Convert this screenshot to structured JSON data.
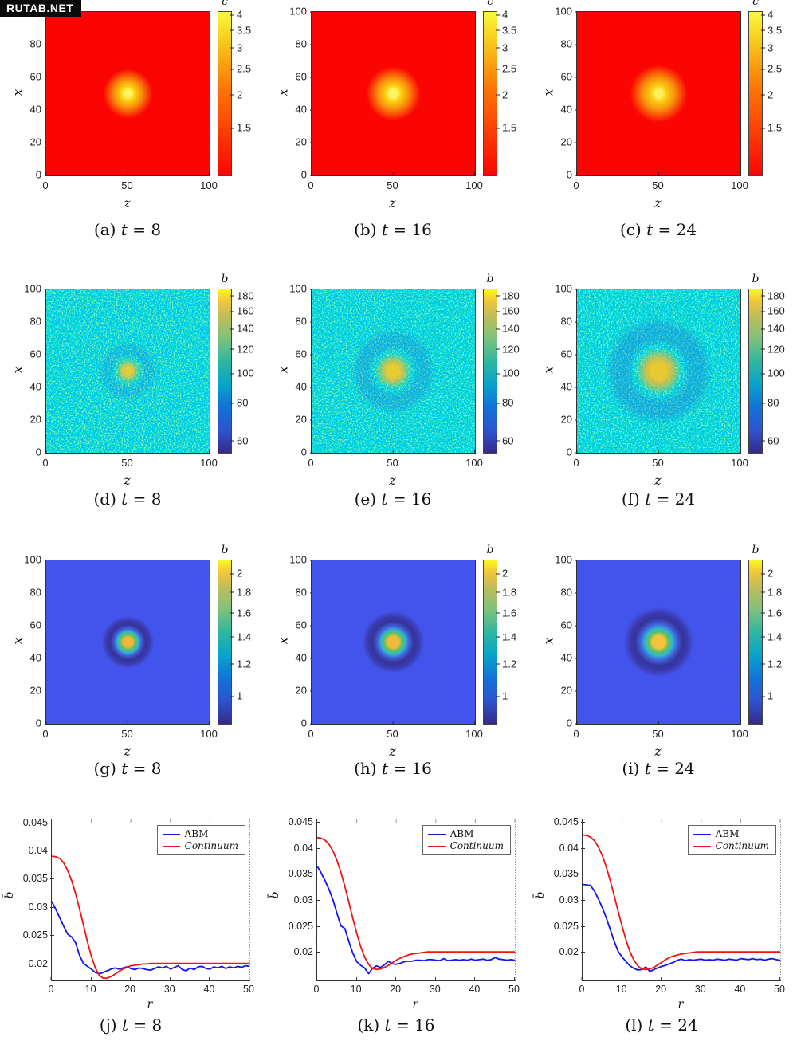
{
  "watermark": "RUTAB.NET",
  "palette": {
    "line_blue": "#1414f0",
    "line_red": "#f01414",
    "row1_background": "#fb0502",
    "row2_base": "#2bacc0",
    "row3_background": "#4354ec",
    "row3_ring": "#35339b",
    "autumn_colormap": [
      "#fa0500",
      "#fb7b07",
      "#f7d21e",
      "#f9f93e"
    ],
    "parula_colormap": [
      "#352a87",
      "#2e54d0",
      "#1173d8",
      "#08a4ca",
      "#2fb79f",
      "#7dc27c",
      "#c3bd59",
      "#f3c63b",
      "#f9f921"
    ]
  },
  "chart_data": [
    {
      "type": "heatmap",
      "label": "continuum nutrient field",
      "colormap": "autumn",
      "xlabel": "z",
      "ylabel": "x",
      "xlim": [
        0,
        100
      ],
      "ylim": [
        0,
        100
      ],
      "x_ticks": [
        0,
        50,
        100
      ],
      "y_ticks": [
        100,
        80,
        60,
        40,
        20,
        0
      ],
      "cbar": {
        "title": "c",
        "scale": "log",
        "min": 1.0,
        "max": 4.12,
        "tick_labels": [
          "4",
          "3.5",
          "3",
          "2.5",
          "2",
          "1.5"
        ],
        "tick_values": [
          4,
          3.5,
          3,
          2.5,
          2,
          1.5
        ]
      },
      "field": {
        "shape": "gaussian-spot",
        "background_value": 1.0,
        "peak_value": 4.0,
        "peak_center": [
          50,
          50
        ]
      },
      "panels": [
        {
          "tag": "(a)",
          "var": "t",
          "rest": "= 8",
          "time": 8
        },
        {
          "tag": "(b)",
          "var": "t",
          "rest": "= 16",
          "time": 16
        },
        {
          "tag": "(c)",
          "var": "t",
          "rest": "= 24",
          "time": 24
        }
      ]
    },
    {
      "type": "heatmap",
      "label": "agent-based bacteria density (noisy)",
      "colormap": "parula",
      "xlabel": "z",
      "ylabel": "x",
      "xlim": [
        0,
        100
      ],
      "ylim": [
        0,
        100
      ],
      "x_ticks": [
        0,
        50,
        100
      ],
      "y_ticks": [
        100,
        80,
        60,
        40,
        20,
        0
      ],
      "cbar": {
        "title": "b",
        "scale": "log",
        "min": 55,
        "max": 190,
        "tick_labels": [
          "180",
          "160",
          "140",
          "120",
          "100",
          "80",
          "60"
        ],
        "tick_values": [
          180,
          160,
          140,
          120,
          100,
          80,
          60
        ]
      },
      "field": {
        "shape": "noisy-spot",
        "background_value": 100,
        "noise_range": [
          60,
          180
        ],
        "peak_value": 180,
        "peak_center": [
          50,
          50
        ]
      },
      "panels": [
        {
          "tag": "(d)",
          "var": "t",
          "rest": "= 8",
          "time": 8
        },
        {
          "tag": "(e)",
          "var": "t",
          "rest": "= 16",
          "time": 16
        },
        {
          "tag": "(f)",
          "var": "t",
          "rest": "= 24",
          "time": 24
        }
      ]
    },
    {
      "type": "heatmap",
      "label": "continuum bacteria density (ring)",
      "colormap": "parula",
      "xlabel": "z",
      "ylabel": "x",
      "xlim": [
        0,
        100
      ],
      "ylim": [
        0,
        100
      ],
      "x_ticks": [
        0,
        50,
        100
      ],
      "y_ticks": [
        100,
        80,
        60,
        40,
        20,
        0
      ],
      "cbar": {
        "title": "b",
        "scale": "log",
        "min": 0.86,
        "max": 2.16,
        "tick_labels": [
          "2",
          "1.8",
          "1.6",
          "1.4",
          "1.2",
          "1"
        ],
        "tick_values": [
          2,
          1.8,
          1.6,
          1.4,
          1.2,
          1
        ]
      },
      "field": {
        "shape": "ring-spot",
        "background_value": 1.05,
        "ring_min": 0.9,
        "peak_value": 2.1,
        "peak_center": [
          50,
          50
        ]
      },
      "panels": [
        {
          "tag": "(g)",
          "var": "t",
          "rest": "= 8",
          "time": 8
        },
        {
          "tag": "(h)",
          "var": "t",
          "rest": "= 16",
          "time": 16
        },
        {
          "tag": "(i)",
          "var": "t",
          "rest": "= 24",
          "time": 24
        }
      ]
    },
    {
      "type": "line",
      "label": "radially averaged density profiles",
      "xlabel": "r",
      "ylabel": "b̄",
      "xlim": [
        0,
        50
      ],
      "x_ticks": [
        0,
        10,
        20,
        30,
        40,
        50
      ],
      "y_tick_labels": [
        "0.045",
        "0.04",
        "0.035",
        "0.03",
        "0.025",
        "0.02"
      ],
      "y_tick_values": [
        0.045,
        0.04,
        0.035,
        0.03,
        0.025,
        0.02
      ],
      "legend_position": "northeast",
      "panels": [
        {
          "tag": "(j)",
          "var": "t",
          "rest": "= 8",
          "time": 8,
          "ylim": [
            0.017,
            0.0455
          ],
          "series": [
            {
              "name": "ABM",
              "color": "#1414f0",
              "italic": false,
              "x_step": 1,
              "y": [
                0.031,
                0.0296,
                0.0281,
                0.0266,
                0.0252,
                0.0247,
                0.0237,
                0.0215,
                0.02,
                0.0195,
                0.019,
                0.0184,
                0.0182,
                0.0184,
                0.0187,
                0.019,
                0.0192,
                0.019,
                0.0192,
                0.0194,
                0.0191,
                0.0189,
                0.0192,
                0.0191,
                0.0189,
                0.0188,
                0.0191,
                0.0194,
                0.0192,
                0.0195,
                0.019,
                0.0193,
                0.0196,
                0.0189,
                0.0187,
                0.0192,
                0.0189,
                0.0194,
                0.0195,
                0.0191,
                0.019,
                0.0194,
                0.0192,
                0.0195,
                0.0191,
                0.0194,
                0.0192,
                0.0195,
                0.0193,
                0.0196,
                0.0195
              ]
            },
            {
              "name": "Continuum",
              "color": "#f01414",
              "italic": true,
              "x_step": 1,
              "y": [
                0.039,
                0.0389,
                0.0386,
                0.0378,
                0.0365,
                0.0347,
                0.0324,
                0.0297,
                0.0268,
                0.0239,
                0.0213,
                0.0192,
                0.0179,
                0.0174,
                0.0174,
                0.0177,
                0.0181,
                0.0186,
                0.019,
                0.0193,
                0.0196,
                0.0197,
                0.0198,
                0.0199,
                0.0199,
                0.02,
                0.02,
                0.02,
                0.02,
                0.02,
                0.02,
                0.02,
                0.02,
                0.02,
                0.02,
                0.02,
                0.02,
                0.02,
                0.02,
                0.02,
                0.02,
                0.02,
                0.02,
                0.02,
                0.02,
                0.02,
                0.02,
                0.02,
                0.02,
                0.02,
                0.02
              ]
            }
          ]
        },
        {
          "tag": "(k)",
          "var": "t",
          "rest": "= 16",
          "time": 16,
          "ylim": [
            0.0145,
            0.0455
          ],
          "series": [
            {
              "name": "ABM",
              "color": "#1414f0",
              "italic": false,
              "x_step": 1,
              "y": [
                0.0365,
                0.0352,
                0.0337,
                0.032,
                0.03,
                0.0274,
                0.025,
                0.0245,
                0.022,
                0.0198,
                0.0181,
                0.0174,
                0.0169,
                0.0158,
                0.0168,
                0.0173,
                0.017,
                0.0175,
                0.0182,
                0.0177,
                0.0176,
                0.0178,
                0.0181,
                0.0182,
                0.0182,
                0.0184,
                0.0184,
                0.0183,
                0.0185,
                0.0185,
                0.0184,
                0.0183,
                0.0187,
                0.0183,
                0.0184,
                0.0185,
                0.0184,
                0.0185,
                0.0184,
                0.0186,
                0.0184,
                0.0185,
                0.0186,
                0.0184,
                0.0185,
                0.0189,
                0.0186,
                0.0185,
                0.0184,
                0.0185,
                0.0184
              ]
            },
            {
              "name": "Continuum",
              "color": "#f01414",
              "italic": true,
              "x_step": 1,
              "y": [
                0.042,
                0.0419,
                0.0415,
                0.0407,
                0.0394,
                0.0376,
                0.0353,
                0.0326,
                0.0296,
                0.0265,
                0.0236,
                0.021,
                0.019,
                0.0176,
                0.0168,
                0.0166,
                0.0167,
                0.017,
                0.0174,
                0.0179,
                0.0184,
                0.0188,
                0.0191,
                0.0194,
                0.0196,
                0.0197,
                0.0198,
                0.0199,
                0.02,
                0.02,
                0.02,
                0.02,
                0.02,
                0.02,
                0.02,
                0.02,
                0.02,
                0.02,
                0.02,
                0.02,
                0.02,
                0.02,
                0.02,
                0.02,
                0.02,
                0.02,
                0.02,
                0.02,
                0.02,
                0.02,
                0.02
              ]
            }
          ]
        },
        {
          "tag": "(l)",
          "var": "t",
          "rest": "= 24",
          "time": 24,
          "ylim": [
            0.0145,
            0.0455
          ],
          "series": [
            {
              "name": "ABM",
              "color": "#1414f0",
              "italic": false,
              "x_step": 1,
              "y": [
                0.033,
                0.0329,
                0.0328,
                0.0317,
                0.0302,
                0.0285,
                0.0265,
                0.0243,
                0.022,
                0.0201,
                0.019,
                0.0181,
                0.0173,
                0.0168,
                0.0165,
                0.0166,
                0.0171,
                0.0162,
                0.0166,
                0.0169,
                0.0172,
                0.0174,
                0.0177,
                0.018,
                0.0184,
                0.0186,
                0.0183,
                0.0185,
                0.0184,
                0.0185,
                0.0186,
                0.0184,
                0.0185,
                0.0184,
                0.0186,
                0.0185,
                0.0184,
                0.0186,
                0.0185,
                0.0184,
                0.0187,
                0.0186,
                0.0185,
                0.0187,
                0.0185,
                0.0186,
                0.0184,
                0.0186,
                0.0187,
                0.0185,
                0.0184
              ]
            },
            {
              "name": "Continuum",
              "color": "#f01414",
              "italic": true,
              "x_step": 1,
              "y": [
                0.0425,
                0.0424,
                0.0421,
                0.0414,
                0.0402,
                0.0385,
                0.0363,
                0.0337,
                0.0308,
                0.0278,
                0.0249,
                0.0222,
                0.02,
                0.0184,
                0.0173,
                0.0167,
                0.0166,
                0.0167,
                0.017,
                0.0175,
                0.018,
                0.0185,
                0.0189,
                0.0192,
                0.0194,
                0.0196,
                0.0197,
                0.0198,
                0.0199,
                0.02,
                0.02,
                0.02,
                0.02,
                0.02,
                0.02,
                0.02,
                0.02,
                0.02,
                0.02,
                0.02,
                0.02,
                0.02,
                0.02,
                0.02,
                0.02,
                0.02,
                0.02,
                0.02,
                0.02,
                0.02,
                0.02
              ]
            }
          ]
        }
      ]
    }
  ]
}
